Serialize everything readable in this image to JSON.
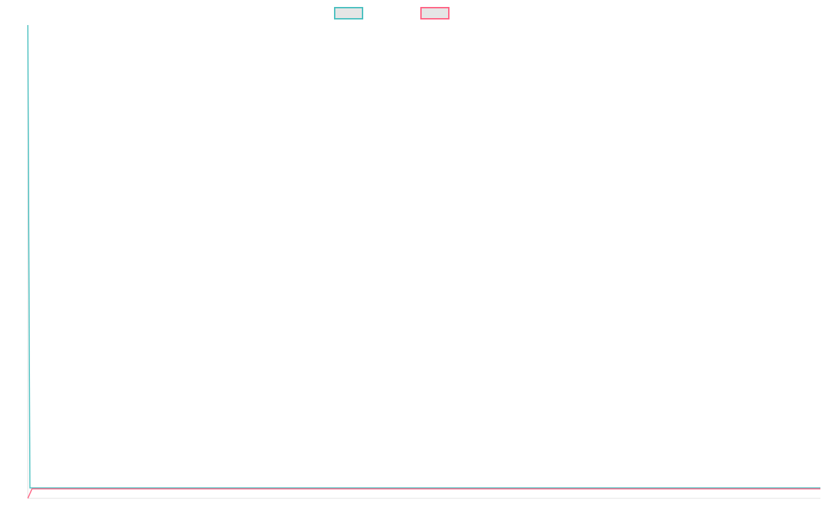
{
  "chart_data": {
    "type": "line",
    "title": "",
    "xlabel": "",
    "ylabel": "",
    "xlim": [
      0,
      380
    ],
    "ylim": [
      0,
      100
    ],
    "grid": false,
    "legend": "top",
    "series": [
      {
        "color": "#4bc0c0",
        "x": [
          0,
          1,
          380
        ],
        "values": [
          100,
          2.2,
          2.2
        ]
      },
      {
        "color": "#ff6384",
        "x": [
          0,
          2,
          380
        ],
        "values": [
          0,
          2,
          2
        ]
      }
    ]
  }
}
